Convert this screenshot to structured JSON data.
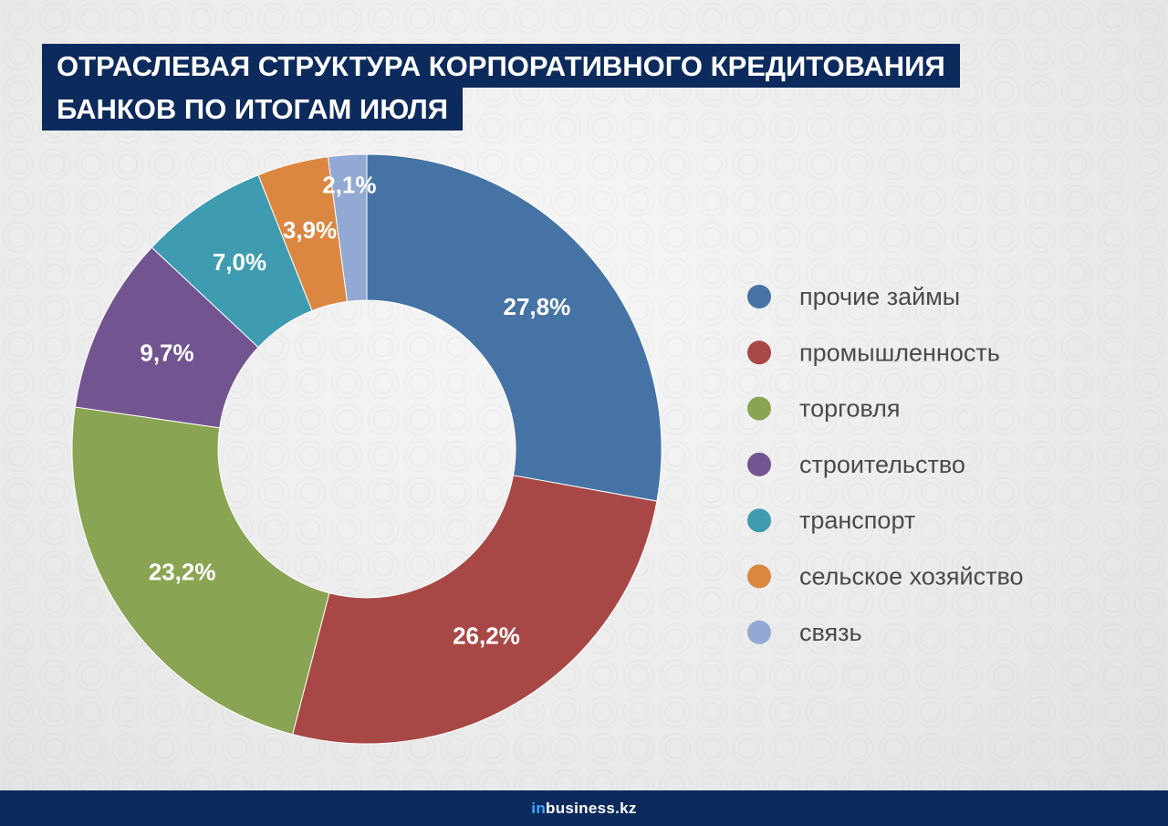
{
  "title": {
    "line1": "ОТРАСЛЕВАЯ СТРУКТУРА КОРПОРАТИВНОГО КРЕДИТОВАНИЯ",
    "line2": "БАНКОВ ПО ИТОГАМ ИЮЛЯ"
  },
  "chart_data": {
    "type": "pie",
    "donut": true,
    "start": "top, clockwise",
    "legend_position": "right",
    "slices": [
      {
        "label": "прочие займы",
        "value": 27.8,
        "display": "27,8%",
        "color": "#4673a6"
      },
      {
        "label": "промышленность",
        "value": 26.2,
        "display": "26,2%",
        "color": "#a84846"
      },
      {
        "label": "торговля",
        "value": 23.2,
        "display": "23,2%",
        "color": "#89a452"
      },
      {
        "label": "строительство",
        "value": 9.7,
        "display": "9,7%",
        "color": "#725590"
      },
      {
        "label": "транспорт",
        "value": 7.0,
        "display": "7,0%",
        "color": "#3f9bb0"
      },
      {
        "label": "сельское хозяйство",
        "value": 3.9,
        "display": "3,9%",
        "color": "#db8741"
      },
      {
        "label": "связь",
        "value": 2.1,
        "display": "2,1%",
        "color": "#92a9d3"
      }
    ]
  },
  "footer": {
    "brand_prefix": "in",
    "brand_rest": "business.kz"
  }
}
